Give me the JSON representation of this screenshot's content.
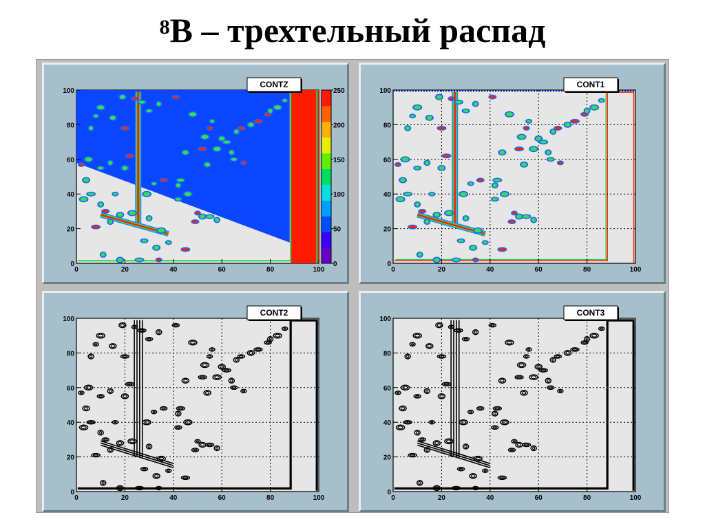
{
  "page": {
    "title_sup": "8",
    "title_main": "B – трехтельный распад"
  },
  "chart_data": [
    {
      "type": "heatmap",
      "title": "CONTZ",
      "xlabel": "",
      "ylabel": "",
      "xlim": [
        0,
        100
      ],
      "ylim": [
        0,
        100
      ],
      "x_ticks": [
        "0",
        "20",
        "40",
        "60",
        "80",
        "100"
      ],
      "y_ticks": [
        "0",
        "20",
        "40",
        "60",
        "80",
        "100"
      ],
      "grid": false,
      "palette": "rainbow",
      "colorbar_ticks": [
        "0",
        "50",
        "100",
        "150",
        "200",
        "250"
      ],
      "zlim": [
        0,
        250
      ]
    },
    {
      "type": "heatmap",
      "title": "CONT1",
      "xlabel": "",
      "ylabel": "",
      "xlim": [
        0,
        100
      ],
      "ylim": [
        0,
        100
      ],
      "x_ticks": [
        "0",
        "20",
        "40",
        "60",
        "80",
        "100"
      ],
      "y_ticks": [
        "0",
        "20",
        "40",
        "60",
        "80",
        "100"
      ],
      "grid": true,
      "palette": "rainbow"
    },
    {
      "type": "heatmap",
      "title": "CONT2",
      "xlabel": "",
      "ylabel": "",
      "xlim": [
        0,
        100
      ],
      "ylim": [
        0,
        100
      ],
      "x_ticks": [
        "0",
        "20",
        "40",
        "60",
        "80",
        "100"
      ],
      "y_ticks": [
        "0",
        "20",
        "40",
        "60",
        "80",
        "100"
      ],
      "grid": true,
      "palette": "black contour lines"
    },
    {
      "type": "heatmap",
      "title": "CONT3",
      "xlabel": "",
      "ylabel": "",
      "xlim": [
        0,
        100
      ],
      "ylim": [
        0,
        100
      ],
      "x_ticks": [
        "0",
        "20",
        "40",
        "60",
        "80",
        "100"
      ],
      "y_ticks": [
        "0",
        "20",
        "40",
        "60",
        "80",
        "100"
      ],
      "grid": true,
      "palette": "black contour lines"
    }
  ],
  "colors": {
    "pad": "#a7bfcb",
    "frame": "#e6e6e6",
    "blue_region": "#0a45ff",
    "ridge": "#ff2200"
  }
}
